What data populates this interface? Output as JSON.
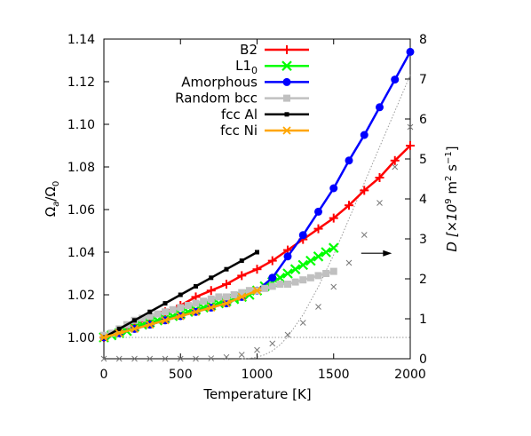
{
  "chart_data": {
    "type": "line",
    "xlabel": "Temperature [K]",
    "ylabel_left": {
      "main": "Ω",
      "sub_a": "a",
      "slash": "/Ω",
      "sub_0": "0"
    },
    "ylabel_right": {
      "pre": "D [×10",
      "exp9": "9",
      "mid": " m",
      "exp2": "2",
      "sp": " s",
      "expm1": "−1",
      "post": "]"
    },
    "xlim": [
      0,
      2000
    ],
    "ylim_left": [
      0.99,
      1.14
    ],
    "ylim_right": [
      0,
      8
    ],
    "xticks": [
      "0",
      "500",
      "1000",
      "1500",
      "2000"
    ],
    "xtick_values": [
      0,
      500,
      1000,
      1500,
      2000
    ],
    "yticks_left": [
      "1.00",
      "1.02",
      "1.04",
      "1.06",
      "1.08",
      "1.10",
      "1.12",
      "1.14"
    ],
    "ytick_values_left": [
      1.0,
      1.02,
      1.04,
      1.06,
      1.08,
      1.1,
      1.12,
      1.14
    ],
    "yticks_right": [
      "0",
      "1",
      "2",
      "3",
      "4",
      "5",
      "6",
      "7",
      "8"
    ],
    "ytick_values_right": [
      0,
      1,
      2,
      3,
      4,
      5,
      6,
      7,
      8
    ],
    "legend_position": "top-left",
    "legend": [
      {
        "label": "B2",
        "color": "#ff0000",
        "marker": "plus"
      },
      {
        "label_main": "L1",
        "label_sub": "0",
        "color": "#00ff00",
        "marker": "cross"
      },
      {
        "label": "Amorphous",
        "color": "#0000ff",
        "marker": "circle"
      },
      {
        "label": "Random bcc",
        "color": "#c0c0c0",
        "marker": "square"
      },
      {
        "label": "fcc Al",
        "color": "#000000",
        "marker": "smallsquare"
      },
      {
        "label": "fcc Ni",
        "color": "#ffa500",
        "marker": "star"
      }
    ],
    "series": [
      {
        "color": "#ff0000",
        "marker": "plus",
        "axis": "left",
        "x": [
          0,
          100,
          200,
          300,
          400,
          500,
          600,
          700,
          800,
          900,
          1000,
          1100,
          1200,
          1300,
          1400,
          1500,
          1600,
          1700,
          1800,
          1900,
          2000
        ],
        "y": [
          1.0,
          1.003,
          1.006,
          1.009,
          1.012,
          1.015,
          1.019,
          1.022,
          1.025,
          1.029,
          1.032,
          1.036,
          1.041,
          1.046,
          1.051,
          1.056,
          1.062,
          1.069,
          1.075,
          1.083,
          1.09
        ]
      },
      {
        "color": "#00ff00",
        "marker": "cross",
        "axis": "left",
        "x": [
          0,
          50,
          100,
          150,
          200,
          250,
          300,
          350,
          400,
          450,
          500,
          550,
          600,
          650,
          700,
          750,
          800,
          850,
          900,
          950,
          1000,
          1050,
          1100,
          1150,
          1200,
          1250,
          1300,
          1350,
          1400,
          1450,
          1500
        ],
        "y": [
          1.0,
          1.001,
          1.002,
          1.003,
          1.005,
          1.006,
          1.007,
          1.008,
          1.009,
          1.01,
          1.011,
          1.012,
          1.013,
          1.014,
          1.015,
          1.016,
          1.017,
          1.018,
          1.019,
          1.02,
          1.022,
          1.024,
          1.026,
          1.028,
          1.03,
          1.032,
          1.034,
          1.036,
          1.038,
          1.04,
          1.042
        ]
      },
      {
        "color": "#0000ff",
        "marker": "circle",
        "axis": "left",
        "x": [
          0,
          100,
          200,
          300,
          400,
          500,
          600,
          700,
          800,
          900,
          1000,
          1100,
          1200,
          1300,
          1400,
          1500,
          1600,
          1700,
          1800,
          1900,
          2000
        ],
        "y": [
          1.0,
          1.002,
          1.004,
          1.006,
          1.008,
          1.01,
          1.012,
          1.014,
          1.016,
          1.019,
          1.022,
          1.028,
          1.038,
          1.048,
          1.059,
          1.07,
          1.083,
          1.095,
          1.108,
          1.121,
          1.134
        ]
      },
      {
        "color": "#c0c0c0",
        "marker": "square",
        "axis": "left",
        "x": [
          0,
          50,
          100,
          150,
          200,
          250,
          300,
          350,
          400,
          450,
          500,
          550,
          600,
          650,
          700,
          750,
          800,
          850,
          900,
          950,
          1000,
          1050,
          1100,
          1150,
          1200,
          1250,
          1300,
          1350,
          1400,
          1450,
          1500
        ],
        "y": [
          1.001,
          1.002,
          1.004,
          1.006,
          1.008,
          1.009,
          1.01,
          1.011,
          1.012,
          1.013,
          1.014,
          1.015,
          1.016,
          1.017,
          1.018,
          1.019,
          1.019,
          1.02,
          1.021,
          1.022,
          1.022,
          1.023,
          1.024,
          1.025,
          1.025,
          1.026,
          1.027,
          1.028,
          1.029,
          1.03,
          1.031
        ]
      },
      {
        "color": "#000000",
        "marker": "smallsquare",
        "axis": "left",
        "x": [
          0,
          100,
          200,
          300,
          400,
          500,
          600,
          700,
          800,
          900,
          1000
        ],
        "y": [
          1.0,
          1.004,
          1.008,
          1.012,
          1.016,
          1.02,
          1.024,
          1.028,
          1.032,
          1.036,
          1.04
        ]
      },
      {
        "color": "#ffa500",
        "marker": "star",
        "axis": "left",
        "x": [
          0,
          100,
          200,
          300,
          400,
          500,
          600,
          700,
          800,
          900,
          1000
        ],
        "y": [
          1.0,
          1.002,
          1.004,
          1.006,
          1.008,
          1.01,
          1.012,
          1.014,
          1.016,
          1.019,
          1.022
        ]
      },
      {
        "color": "#777777",
        "marker": "x",
        "axis": "right",
        "line": "none",
        "x": [
          0,
          100,
          200,
          300,
          400,
          500,
          600,
          700,
          800,
          900,
          1000,
          1100,
          1200,
          1300,
          1400,
          1500,
          1600,
          1700,
          1800,
          1900,
          2000
        ],
        "y": [
          0,
          0,
          0,
          0,
          0,
          0,
          0,
          0.01,
          0.04,
          0.1,
          0.22,
          0.38,
          0.6,
          0.9,
          1.3,
          1.8,
          2.4,
          3.1,
          3.9,
          4.8,
          5.8
        ]
      },
      {
        "color": "#999999",
        "marker": "none",
        "axis": "right",
        "line": "dotted",
        "x": [
          900,
          950,
          1000,
          1050,
          1100,
          1150,
          1200,
          1300,
          1400,
          1500,
          1600,
          1700,
          1800,
          1900,
          2000
        ],
        "y": [
          0,
          0.01,
          0.04,
          0.1,
          0.2,
          0.35,
          0.55,
          1.1,
          1.8,
          2.6,
          3.5,
          4.4,
          5.3,
          6.2,
          7.1
        ]
      },
      {
        "color": "#999999",
        "marker": "none",
        "axis": "left",
        "line": "dotted",
        "x": [
          0,
          2000
        ],
        "y": [
          1.0,
          1.0
        ]
      }
    ],
    "annotations": [
      {
        "type": "arrow",
        "x_from": 1680,
        "x_to": 1880,
        "y_left": 1.0395,
        "direction": "right"
      }
    ]
  }
}
